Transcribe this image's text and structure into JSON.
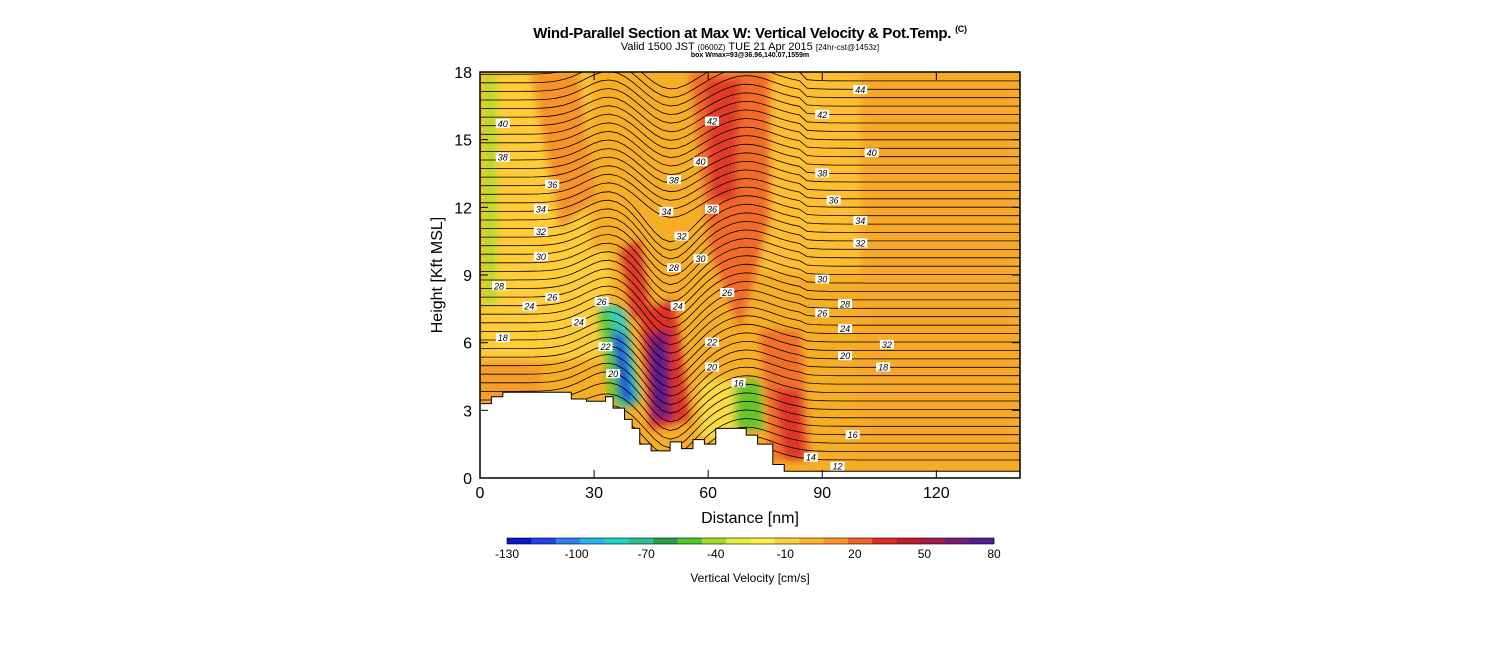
{
  "header": {
    "title": "Wind-Parallel Section at Max W: Vertical Velocity & Pot.Temp.",
    "title_mark": "(C)",
    "subtitle_a": "Valid 1500 JST",
    "subtitle_b": "(0600Z)",
    "subtitle_c": "TUE 21 Apr 2015",
    "subtitle_d": "[24hr-cst@1453z]",
    "info": "box Wmax=93@36.96,140.07,1559m"
  },
  "chart_data": {
    "type": "heatmap",
    "xlabel": "Distance [nm]",
    "ylabel": "Height [Kft MSL]",
    "xlim": [
      0,
      142
    ],
    "ylim": [
      0,
      18
    ],
    "x_ticks": [
      "0",
      "30",
      "60",
      "90",
      "120"
    ],
    "y_ticks": [
      "0",
      "3",
      "6",
      "9",
      "12",
      "15",
      "18"
    ],
    "grid": false,
    "colorbar": {
      "label": "Vertical Velocity [cm/s]",
      "tick_labels": [
        "-130",
        "-100",
        "-70",
        "-40",
        "-10",
        "20",
        "50",
        "80"
      ],
      "colors": [
        "#0a14c8",
        "#1e46e6",
        "#2d82f0",
        "#28b4eb",
        "#23d2c8",
        "#2dbe96",
        "#28a046",
        "#50c828",
        "#a0dc28",
        "#e6f03c",
        "#fff046",
        "#ffd23c",
        "#ffb428",
        "#ff9628",
        "#f06428",
        "#dc2d28",
        "#be1e28",
        "#a01e50",
        "#781e78",
        "#501e96"
      ],
      "placement": "bottom"
    },
    "terrain_kft": [
      [
        0,
        3.3
      ],
      [
        3,
        3.3
      ],
      [
        3,
        3.6
      ],
      [
        6,
        3.6
      ],
      [
        6,
        3.8
      ],
      [
        24,
        3.8
      ],
      [
        24,
        3.5
      ],
      [
        28,
        3.5
      ],
      [
        28,
        3.4
      ],
      [
        33,
        3.4
      ],
      [
        33,
        3.6
      ],
      [
        35,
        3.6
      ],
      [
        35,
        3.1
      ],
      [
        38,
        3.1
      ],
      [
        38,
        2.6
      ],
      [
        40,
        2.6
      ],
      [
        40,
        2.2
      ],
      [
        42,
        2.2
      ],
      [
        42,
        1.5
      ],
      [
        45,
        1.5
      ],
      [
        45,
        1.2
      ],
      [
        50,
        1.2
      ],
      [
        50,
        1.6
      ],
      [
        53,
        1.6
      ],
      [
        53,
        1.3
      ],
      [
        56,
        1.3
      ],
      [
        56,
        1.7
      ],
      [
        59,
        1.7
      ],
      [
        59,
        1.5
      ],
      [
        62,
        1.5
      ],
      [
        62,
        2.2
      ],
      [
        70,
        2.2
      ],
      [
        70,
        1.9
      ],
      [
        73,
        1.9
      ],
      [
        73,
        1.5
      ],
      [
        77,
        1.5
      ],
      [
        77,
        0.6
      ],
      [
        80,
        0.6
      ],
      [
        80,
        0.3
      ],
      [
        142,
        0.3
      ]
    ],
    "theta_contour_labels": [
      {
        "v": "44",
        "x": 100,
        "y": 17.2
      },
      {
        "v": "42",
        "x": 61,
        "y": 15.8
      },
      {
        "v": "42",
        "x": 90,
        "y": 16.1
      },
      {
        "v": "40",
        "x": 6,
        "y": 15.7
      },
      {
        "v": "40",
        "x": 58,
        "y": 14.0
      },
      {
        "v": "40",
        "x": 103,
        "y": 14.4
      },
      {
        "v": "38",
        "x": 6,
        "y": 14.2
      },
      {
        "v": "38",
        "x": 51,
        "y": 13.2
      },
      {
        "v": "38",
        "x": 90,
        "y": 13.5
      },
      {
        "v": "36",
        "x": 19,
        "y": 13.0
      },
      {
        "v": "36",
        "x": 61,
        "y": 11.9
      },
      {
        "v": "36",
        "x": 93,
        "y": 12.3
      },
      {
        "v": "34",
        "x": 16,
        "y": 11.9
      },
      {
        "v": "34",
        "x": 49,
        "y": 11.8
      },
      {
        "v": "34",
        "x": 100,
        "y": 11.4
      },
      {
        "v": "32",
        "x": 16,
        "y": 10.9
      },
      {
        "v": "32",
        "x": 53,
        "y": 10.7
      },
      {
        "v": "32",
        "x": 100,
        "y": 10.4
      },
      {
        "v": "30",
        "x": 16,
        "y": 9.8
      },
      {
        "v": "30",
        "x": 58,
        "y": 9.7
      },
      {
        "v": "30",
        "x": 90,
        "y": 8.8
      },
      {
        "v": "28",
        "x": 5,
        "y": 8.5
      },
      {
        "v": "28",
        "x": 51,
        "y": 9.3
      },
      {
        "v": "28",
        "x": 96,
        "y": 7.7
      },
      {
        "v": "26",
        "x": 19,
        "y": 8.0
      },
      {
        "v": "26",
        "x": 32,
        "y": 7.8
      },
      {
        "v": "26",
        "x": 65,
        "y": 8.2
      },
      {
        "v": "26",
        "x": 90,
        "y": 7.3
      },
      {
        "v": "24",
        "x": 13,
        "y": 7.6
      },
      {
        "v": "24",
        "x": 26,
        "y": 6.9
      },
      {
        "v": "24",
        "x": 52,
        "y": 7.6
      },
      {
        "v": "24",
        "x": 96,
        "y": 6.6
      },
      {
        "v": "22",
        "x": 33,
        "y": 5.8
      },
      {
        "v": "22",
        "x": 61,
        "y": 6.0
      },
      {
        "v": "20",
        "x": 35,
        "y": 4.6
      },
      {
        "v": "20",
        "x": 61,
        "y": 4.9
      },
      {
        "v": "20",
        "x": 96,
        "y": 5.4
      },
      {
        "v": "18",
        "x": 6,
        "y": 6.2
      },
      {
        "v": "18",
        "x": 106,
        "y": 4.9
      },
      {
        "v": "16",
        "x": 68,
        "y": 4.2
      },
      {
        "v": "16",
        "x": 98,
        "y": 1.9
      },
      {
        "v": "32",
        "x": 107,
        "y": 5.9
      },
      {
        "v": "14",
        "x": 87,
        "y": 0.9
      },
      {
        "v": "12",
        "x": 94,
        "y": 0.5
      }
    ]
  }
}
